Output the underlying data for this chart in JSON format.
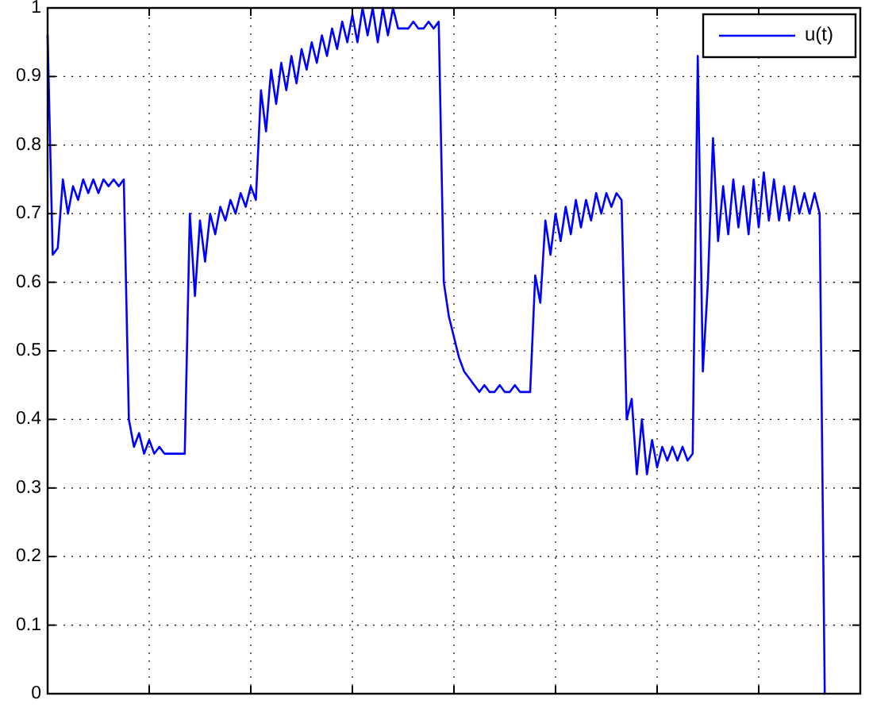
{
  "chart_data": {
    "type": "line",
    "categories": [
      null,
      null,
      null,
      null,
      null,
      null,
      null,
      null,
      null,
      null,
      null,
      null,
      null,
      null,
      null,
      null,
      null,
      null,
      null,
      null,
      null,
      null,
      null,
      null,
      null,
      null,
      null,
      null,
      null,
      null,
      null,
      null,
      null,
      null,
      null,
      null,
      null,
      null,
      null,
      null,
      null,
      null,
      null,
      null,
      null,
      null,
      null,
      null,
      null,
      null,
      null,
      null,
      null,
      null,
      null,
      null,
      null,
      null,
      null,
      null,
      null,
      null,
      null,
      null,
      null,
      null,
      null,
      null,
      null,
      null,
      null,
      null,
      null,
      null,
      null,
      null,
      null,
      null,
      null,
      null,
      null,
      null,
      null,
      null,
      null,
      null,
      null,
      null,
      null,
      null,
      null,
      null,
      null,
      null,
      null,
      null,
      null,
      null,
      null,
      null,
      null,
      null,
      null,
      null,
      null,
      null,
      null,
      null,
      null,
      null,
      null,
      null,
      null,
      null,
      null,
      null,
      null,
      null,
      null,
      null,
      null,
      null,
      null,
      null,
      null,
      null,
      null,
      null,
      null,
      null,
      null,
      null,
      null,
      null,
      null,
      null,
      null,
      null,
      null,
      null,
      null,
      null,
      null,
      null,
      null,
      null,
      null,
      null,
      null,
      null,
      null,
      null,
      null,
      null,
      null,
      null,
      null,
      null,
      null,
      null,
      null
    ],
    "series": [
      {
        "name": "u(t)",
        "color": "#0000ff",
        "values": [
          0.96,
          0.64,
          0.65,
          0.75,
          0.7,
          0.74,
          0.72,
          0.75,
          0.73,
          0.75,
          0.73,
          0.75,
          0.74,
          0.75,
          0.74,
          0.75,
          0.4,
          0.36,
          0.38,
          0.35,
          0.37,
          0.35,
          0.36,
          0.35,
          0.35,
          0.35,
          0.35,
          0.35,
          0.7,
          0.58,
          0.69,
          0.63,
          0.7,
          0.67,
          0.71,
          0.69,
          0.72,
          0.7,
          0.73,
          0.71,
          0.74,
          0.72,
          0.88,
          0.82,
          0.91,
          0.86,
          0.92,
          0.88,
          0.93,
          0.89,
          0.94,
          0.91,
          0.95,
          0.92,
          0.96,
          0.93,
          0.97,
          0.94,
          0.98,
          0.95,
          0.99,
          0.95,
          1.0,
          0.96,
          1.0,
          0.95,
          1.0,
          0.96,
          1.0,
          0.97,
          0.97,
          0.97,
          0.98,
          0.97,
          0.97,
          0.98,
          0.97,
          0.98,
          0.6,
          0.55,
          0.52,
          0.49,
          0.47,
          0.46,
          0.45,
          0.44,
          0.45,
          0.44,
          0.44,
          0.45,
          0.44,
          0.44,
          0.45,
          0.44,
          0.44,
          0.44,
          0.61,
          0.57,
          0.69,
          0.64,
          0.7,
          0.66,
          0.71,
          0.67,
          0.72,
          0.68,
          0.72,
          0.69,
          0.73,
          0.7,
          0.73,
          0.71,
          0.73,
          0.72,
          0.4,
          0.43,
          0.32,
          0.4,
          0.32,
          0.37,
          0.33,
          0.36,
          0.34,
          0.36,
          0.34,
          0.36,
          0.34,
          0.35,
          0.93,
          0.47,
          0.6,
          0.81,
          0.66,
          0.74,
          0.67,
          0.75,
          0.68,
          0.74,
          0.67,
          0.75,
          0.68,
          0.76,
          0.69,
          0.75,
          0.69,
          0.74,
          0.69,
          0.74,
          0.7,
          0.73,
          0.7,
          0.73,
          0.7,
          0,
          null,
          null,
          null,
          null,
          null,
          null,
          null
        ]
      }
    ],
    "ylim": [
      0,
      1
    ],
    "yticks": [
      0,
      0.1,
      0.2,
      0.3,
      0.4,
      0.5,
      0.6,
      0.7,
      0.8,
      0.9,
      1
    ],
    "tick_labels": "y",
    "grid": true,
    "legend": "top right"
  }
}
